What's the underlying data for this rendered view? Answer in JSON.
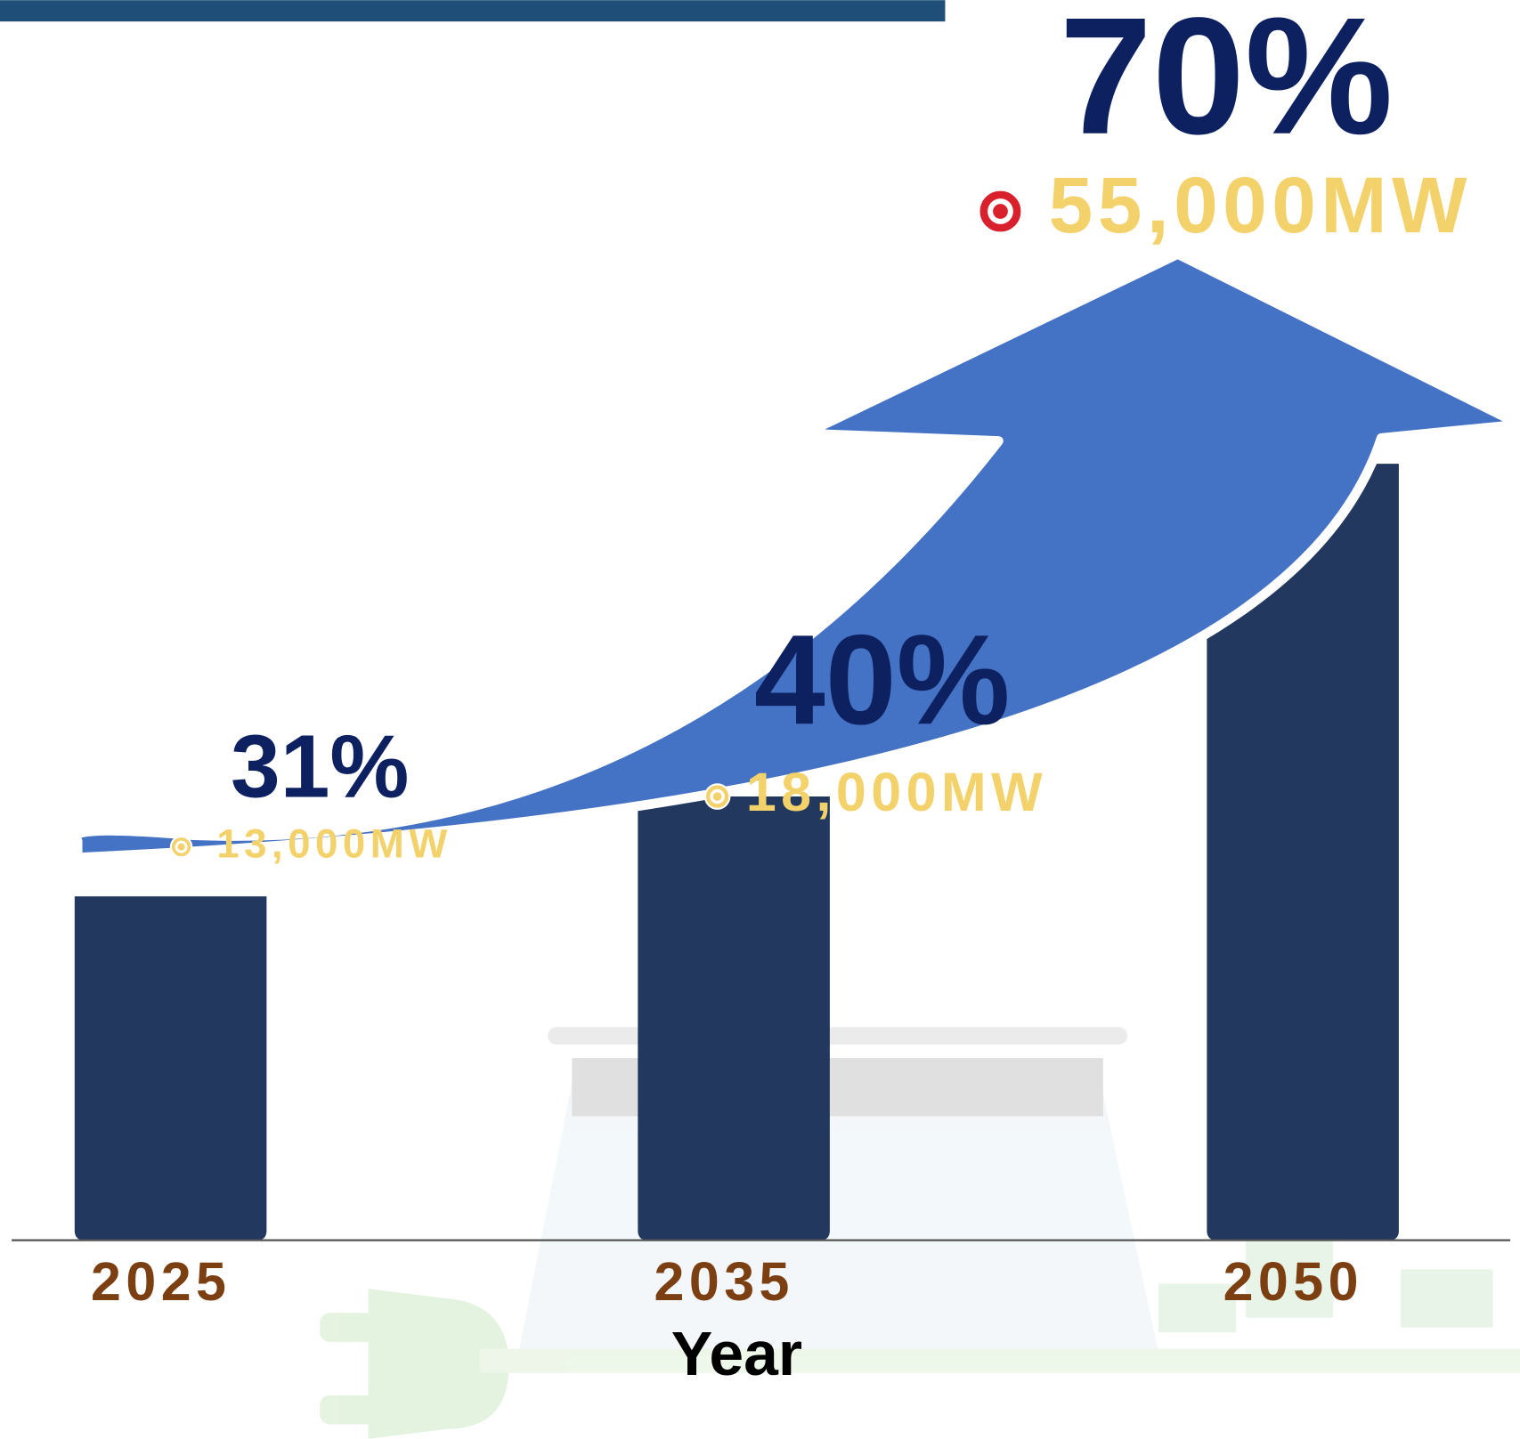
{
  "chart_data": {
    "type": "bar",
    "categories": [
      "2025",
      "2035",
      "2050"
    ],
    "values": [
      31,
      40,
      70
    ],
    "value_labels": [
      "31%",
      "40%",
      "70%"
    ],
    "capacity": {
      "values": [
        13000,
        18000,
        55000
      ],
      "value_labels": [
        "13,000MW",
        "18,000MW",
        "55,000MW"
      ],
      "color": "#f3d26b",
      "marker_colors": [
        "#f3d26b",
        "#f3d26b",
        "#d9212e"
      ]
    },
    "xlabel": "Year",
    "color": "#22385f",
    "arrow_color": "#4472c4"
  }
}
